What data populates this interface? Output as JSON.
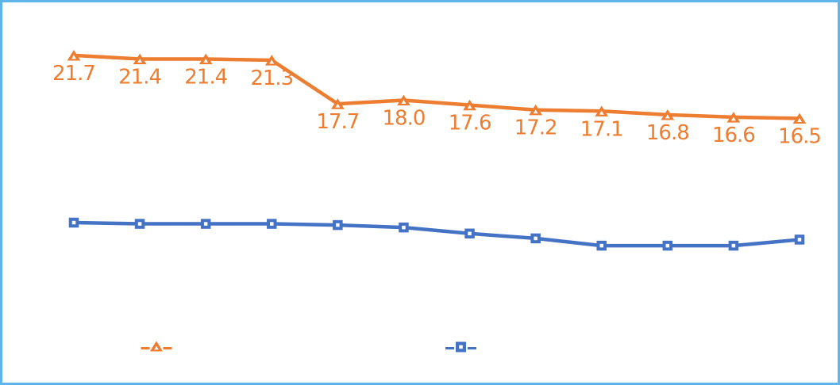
{
  "frame": {
    "background": "#FFFFFF",
    "border_color": "#5FB4EA"
  },
  "chart_data": {
    "type": "line",
    "title": "",
    "xlabel": "",
    "ylabel": "",
    "axes_visible": false,
    "gridlines": false,
    "category_labels_visible": false,
    "point_count": 12,
    "value_format": "one_decimal",
    "series": [
      {
        "name": "orange-triangle-series",
        "color": "#ED7D31",
        "marker": "triangle-up",
        "marker_center": "#FFFFFF",
        "data_labels_visible": true,
        "values": [
          21.7,
          21.4,
          21.4,
          21.3,
          17.7,
          18.0,
          17.6,
          17.2,
          17.1,
          16.8,
          16.6,
          16.5
        ],
        "data_labels": [
          "21.7",
          "21.4",
          "21.4",
          "21.3",
          "17.7",
          "18.0",
          "17.6",
          "17.2",
          "17.1",
          "16.8",
          "16.6",
          "16.5"
        ]
      },
      {
        "name": "blue-square-series",
        "color": "#4472C4",
        "marker": "square",
        "marker_center": "#FFFFFF",
        "data_labels_visible": false,
        "values_estimated_from_pixels": true,
        "values": [
          7.9,
          7.8,
          7.8,
          7.8,
          7.7,
          7.5,
          7.0,
          6.6,
          6.0,
          6.0,
          6.0,
          6.5
        ]
      }
    ],
    "legend": {
      "position": "bottom-center",
      "entries": [
        {
          "series": "orange-triangle-series",
          "marker": "triangle-up",
          "color": "#ED7D31",
          "label": "",
          "label_text_visible": false
        },
        {
          "series": "blue-square-series",
          "marker": "square",
          "color": "#4472C4",
          "label": "",
          "label_text_visible": false
        }
      ]
    }
  }
}
